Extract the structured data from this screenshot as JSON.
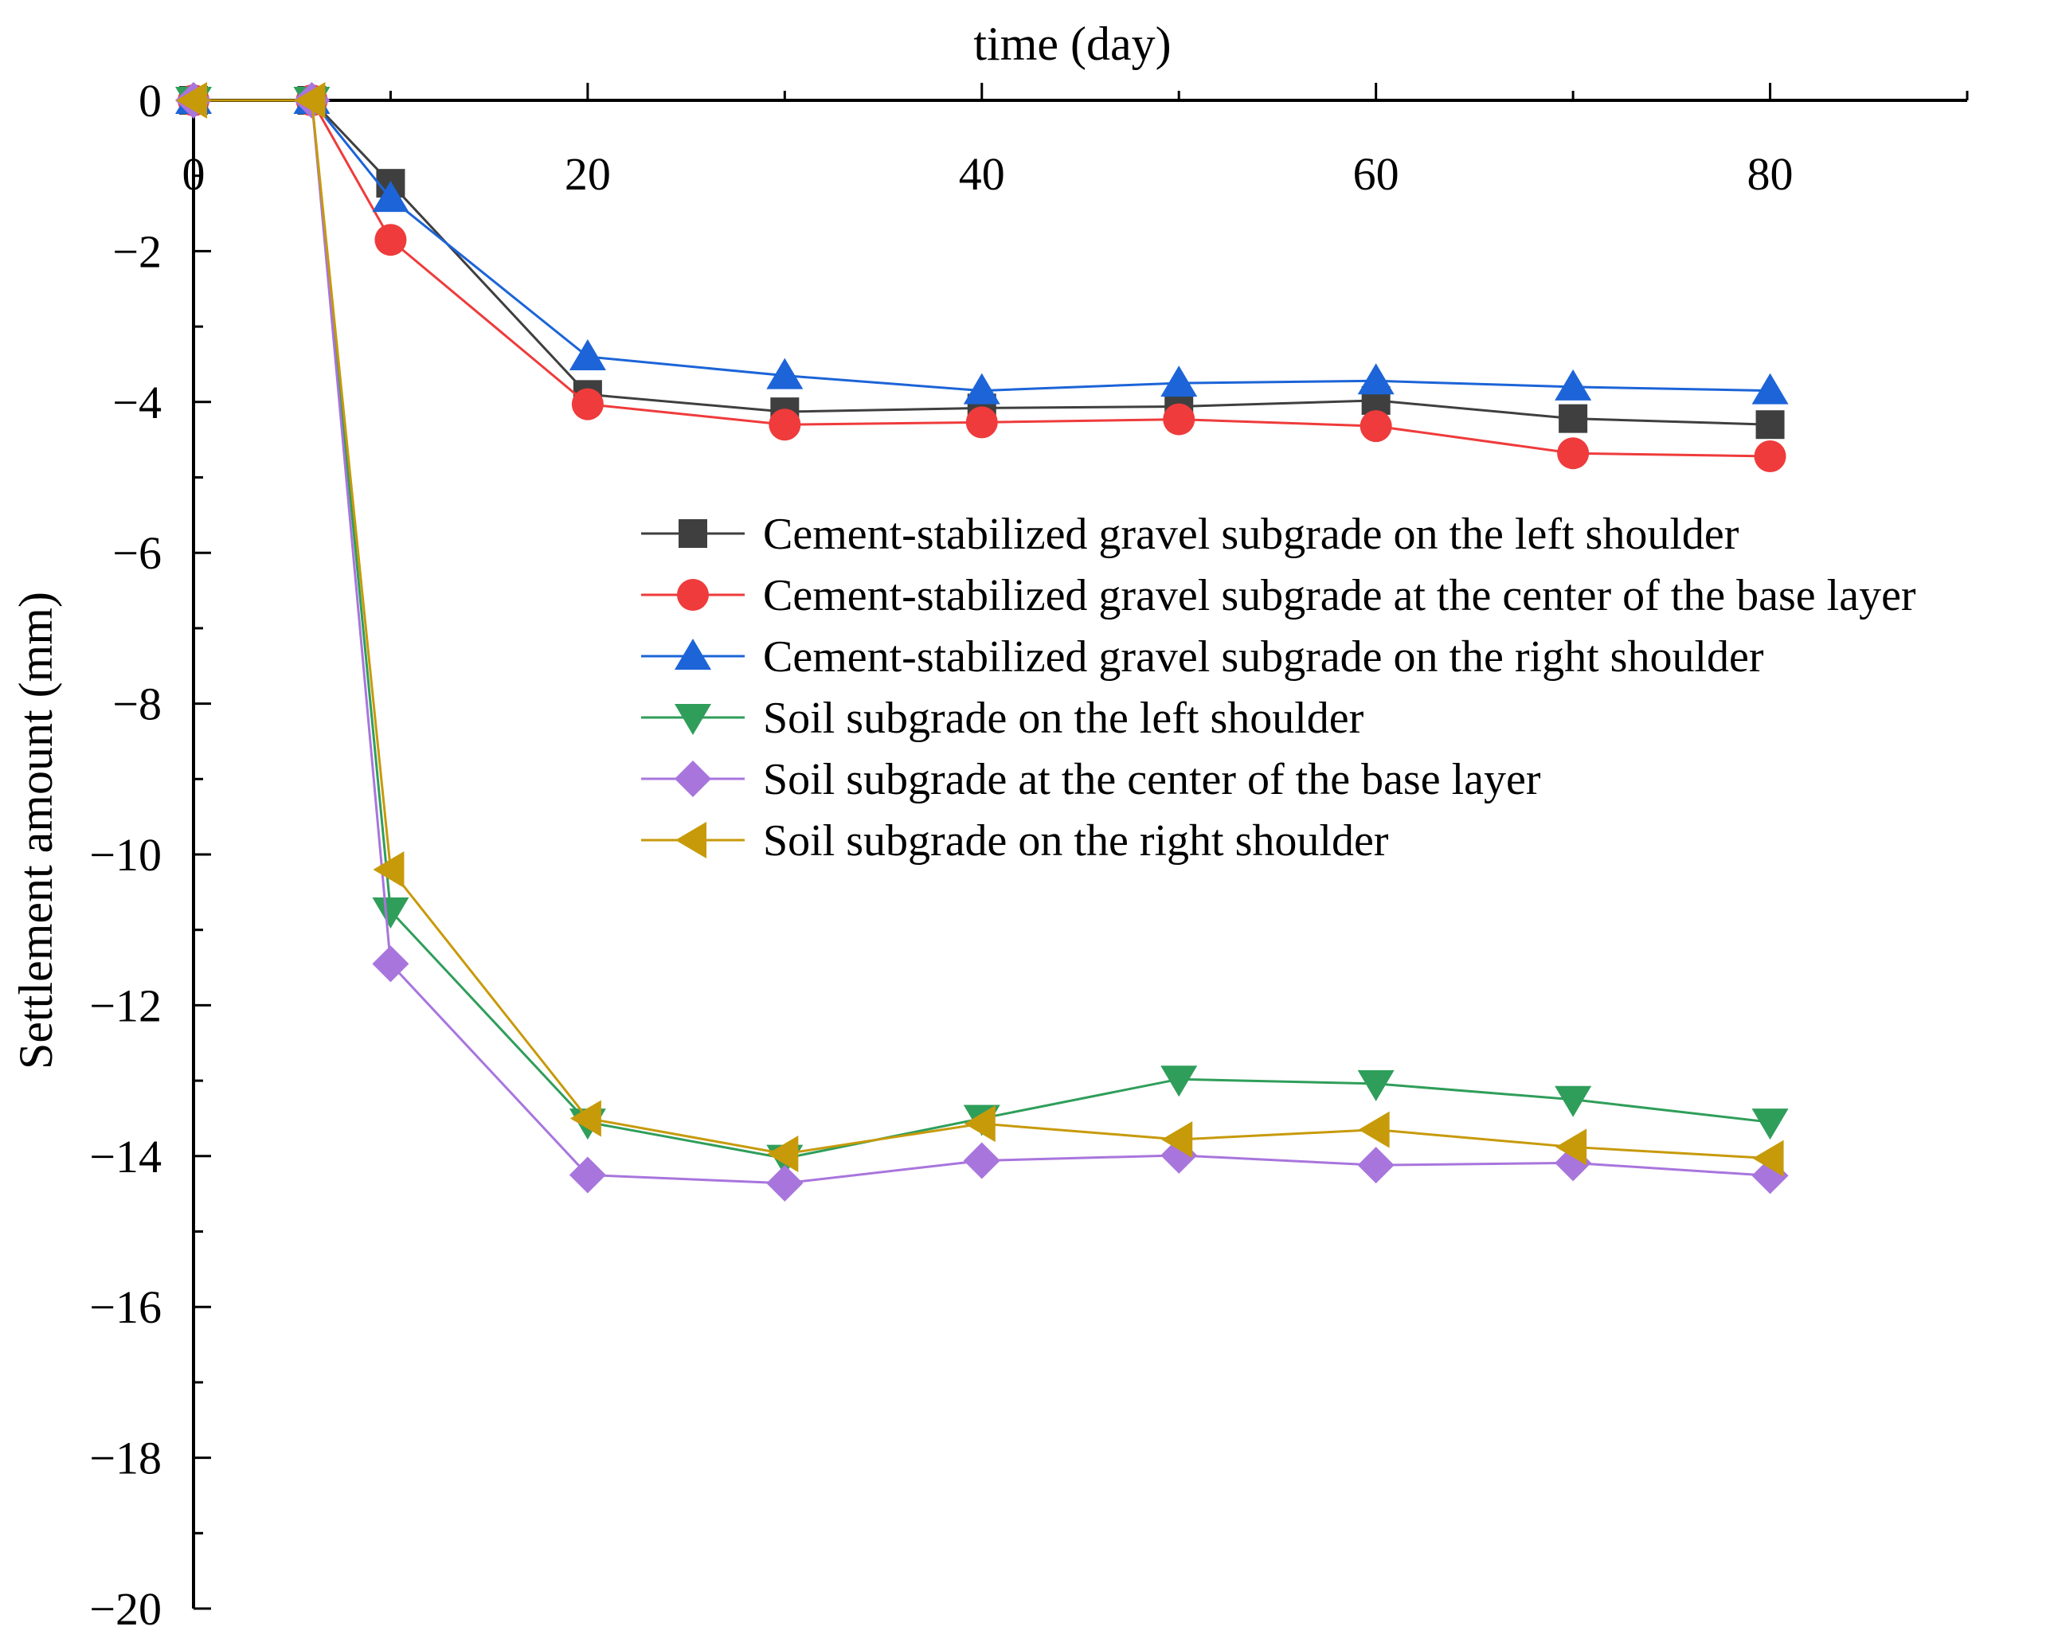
{
  "chart_data": {
    "type": "line",
    "title": "",
    "xlabel": "time (day)",
    "ylabel": "Settlement amount (mm)",
    "xlim": [
      0,
      90
    ],
    "ylim": [
      -20,
      0
    ],
    "x_axis_position": "top",
    "x_ticks": [
      "0",
      "20",
      "40",
      "60",
      "80"
    ],
    "y_ticks": [
      "0",
      "−2",
      "−4",
      "−6",
      "−8",
      "−10",
      "−12",
      "−14",
      "−16",
      "−18",
      "−20"
    ],
    "grid": false,
    "legend_position": "center-right",
    "series": [
      {
        "name": "Cement-stabilized gravel subgrade on the left shoulder",
        "color": "#3f3f3f",
        "marker": "square",
        "x": [
          0,
          6,
          10,
          20,
          30,
          40,
          50,
          60,
          70,
          80
        ],
        "y": [
          0,
          0,
          -1.1,
          -3.9,
          -4.13,
          -4.08,
          -4.06,
          -3.98,
          -4.22,
          -4.3
        ]
      },
      {
        "name": "Cement-stabilized gravel subgrade at the center of the base layer",
        "color": "#ef3b3b",
        "marker": "circle",
        "x": [
          0,
          6,
          10,
          20,
          30,
          40,
          50,
          60,
          70,
          80
        ],
        "y": [
          0,
          0,
          -1.85,
          -4.03,
          -4.3,
          -4.27,
          -4.23,
          -4.32,
          -4.68,
          -4.72
        ]
      },
      {
        "name": "Cement-stabilized gravel subgrade on the right shoulder",
        "color": "#1c64d8",
        "marker": "triangle-up",
        "x": [
          0,
          6,
          10,
          20,
          30,
          40,
          50,
          60,
          70,
          80
        ],
        "y": [
          0,
          0,
          -1.3,
          -3.4,
          -3.65,
          -3.85,
          -3.75,
          -3.72,
          -3.8,
          -3.85
        ]
      },
      {
        "name": "Soil subgrade on the left shoulder",
        "color": "#2f9e5a",
        "marker": "triangle-down",
        "x": [
          0,
          6,
          10,
          20,
          30,
          40,
          50,
          60,
          70,
          80
        ],
        "y": [
          0,
          0,
          -10.75,
          -13.55,
          -14.03,
          -13.5,
          -12.98,
          -13.04,
          -13.25,
          -13.55
        ]
      },
      {
        "name": "Soil subgrade at the center of the base layer",
        "color": "#a875dd",
        "marker": "diamond",
        "x": [
          0,
          6,
          10,
          20,
          30,
          40,
          50,
          60,
          70,
          80
        ],
        "y": [
          0,
          0,
          -11.45,
          -14.25,
          -14.36,
          -14.06,
          -13.99,
          -14.12,
          -14.09,
          -14.26
        ]
      },
      {
        "name": "Soil subgrade on the right shoulder",
        "color": "#c79a0a",
        "marker": "triangle-left",
        "x": [
          0,
          6,
          10,
          20,
          30,
          40,
          50,
          60,
          70,
          80
        ],
        "y": [
          0,
          0,
          -10.2,
          -13.5,
          -13.97,
          -13.57,
          -13.78,
          -13.65,
          -13.88,
          -14.03
        ]
      }
    ]
  }
}
